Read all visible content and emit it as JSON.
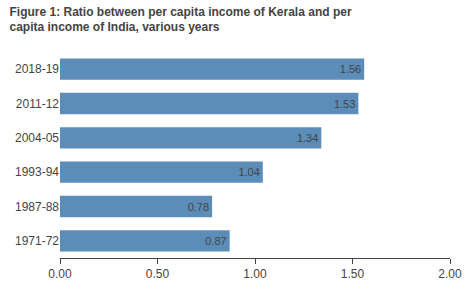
{
  "chart_data": {
    "type": "bar",
    "orientation": "horizontal",
    "title": "Figure 1: Ratio between per capita income of Kerala and per\ncapita income of India, various years",
    "categories": [
      "2018-19",
      "2011-12",
      "2004-05",
      "1993-94",
      "1987-88",
      "1971-72"
    ],
    "values": [
      1.56,
      1.53,
      1.34,
      1.04,
      0.78,
      0.87
    ],
    "color": "#5b8db8",
    "data_labels": true,
    "xlim": [
      0,
      2.0
    ],
    "xticks": [
      {
        "value": 0.0,
        "label": "0.00"
      },
      {
        "value": 0.5,
        "label": "0.50"
      },
      {
        "value": 1.0,
        "label": "1.00"
      },
      {
        "value": 1.5,
        "label": "1.50"
      },
      {
        "value": 2.0,
        "label": "2.00"
      }
    ],
    "grid": false
  }
}
